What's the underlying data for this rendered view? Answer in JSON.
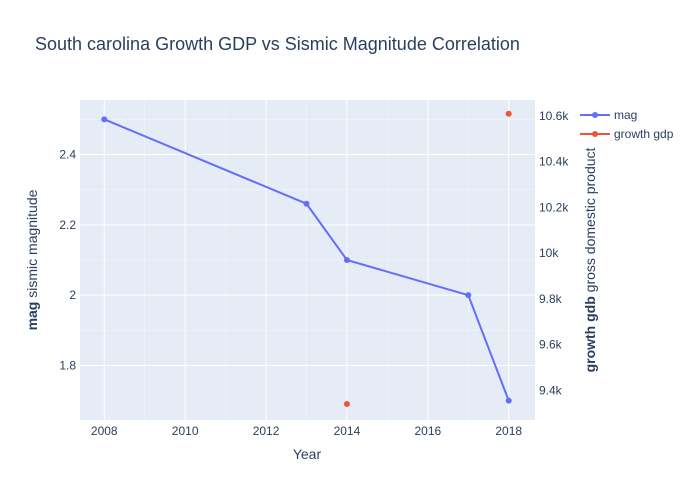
{
  "chart_data": {
    "type": "line",
    "title": "South carolina Growth GDP vs Sismic Magnitude Correlation",
    "xlabel": "Year",
    "ylabel_left_bold": "mag",
    "ylabel_left_rest": " sismic magnitude",
    "ylabel_right_bold": "growth gdb",
    "ylabel_right_rest": " gross domestic product",
    "x_ticks": [
      "2008",
      "2010",
      "2012",
      "2014",
      "2016",
      "2018"
    ],
    "y_left_ticks": [
      "1.8",
      "2",
      "2.2",
      "2.4"
    ],
    "y_right_ticks": [
      "9.4k",
      "9.6k",
      "9.8k",
      "10k",
      "10.2k",
      "10.4k",
      "10.6k"
    ],
    "xlim": [
      2007.4,
      2018.65
    ],
    "ylim_left": [
      1.645,
      2.555
    ],
    "ylim_right": [
      9270,
      10670
    ],
    "legend_position": "top-right",
    "series": [
      {
        "name": "mag",
        "axis": "left",
        "mode": "lines+markers",
        "color": "#636efa",
        "x": [
          2008,
          2013,
          2014,
          2017,
          2018
        ],
        "y": [
          2.5,
          2.26,
          2.1,
          2.0,
          1.7
        ]
      },
      {
        "name": "growth gdp",
        "axis": "right",
        "mode": "markers",
        "color": "#EF553B",
        "x": [
          2014,
          2018
        ],
        "y": [
          9340,
          10610
        ]
      }
    ]
  },
  "colors": {
    "plot_bg": "#e5ecf6",
    "grid": "#ffffff",
    "text": "#2a3f5f"
  }
}
